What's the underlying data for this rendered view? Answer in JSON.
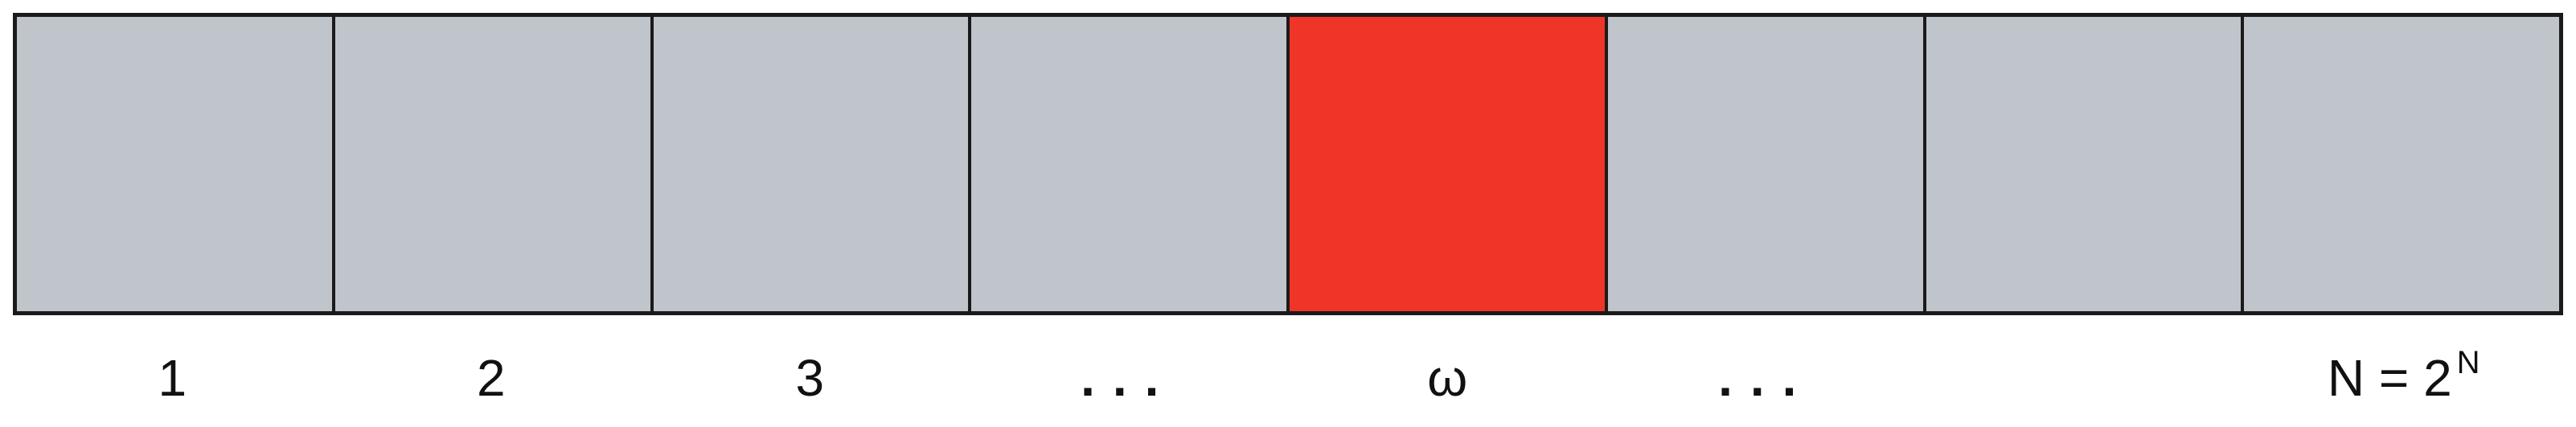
{
  "diagram": {
    "cells": [
      {
        "label": "1",
        "marked": false
      },
      {
        "label": "2",
        "marked": false
      },
      {
        "label": "3",
        "marked": false
      },
      {
        "label": "...",
        "marked": false
      },
      {
        "label": "ω",
        "marked": true
      },
      {
        "label": "...",
        "marked": false
      },
      {
        "label": "",
        "marked": false
      },
      {
        "label": "N = 2",
        "label_sup": "N",
        "marked": false
      }
    ],
    "colors": {
      "cell": "#c0c5cb",
      "marked": "#ee3528",
      "border": "#1a1a1a"
    }
  }
}
